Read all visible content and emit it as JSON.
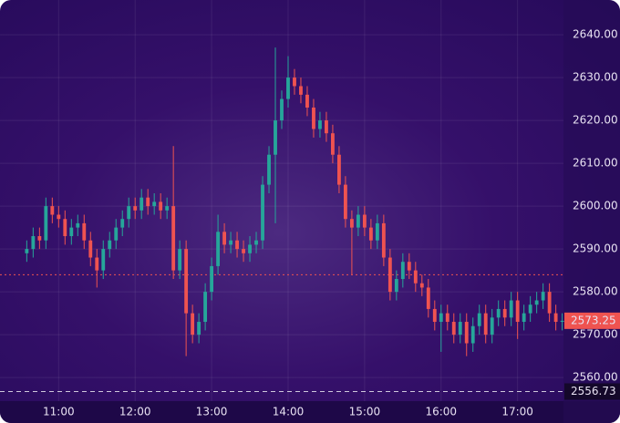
{
  "chart_data": {
    "type": "candlestick",
    "up_color": "#26a69a",
    "down_color": "#ef5350",
    "grid": true,
    "x": [
      635,
      640,
      645,
      650,
      655,
      660,
      665,
      670,
      675,
      680,
      685,
      690,
      695,
      700,
      705,
      710,
      715,
      720,
      725,
      730,
      735,
      740,
      745,
      750,
      755,
      760,
      765,
      770,
      775,
      780,
      785,
      790,
      795,
      800,
      805,
      810,
      815,
      820,
      825,
      830,
      835,
      840,
      845,
      850,
      855,
      860,
      865,
      870,
      875,
      880,
      885,
      890,
      895,
      900,
      905,
      910,
      915,
      920,
      925,
      930,
      935,
      940,
      945,
      950,
      955,
      960,
      965,
      970,
      975,
      980,
      985,
      990,
      995,
      1000,
      1005,
      1010,
      1015,
      1020,
      1025,
      1030,
      1035,
      1040,
      1045,
      1050,
      1055
    ],
    "open": [
      2589,
      2590,
      2593,
      2592,
      2600,
      2598,
      2597,
      2593,
      2595,
      2596,
      2592,
      2588,
      2585,
      2590,
      2592,
      2595,
      2597,
      2600,
      2599,
      2602,
      2600,
      2601,
      2599,
      2600,
      2585,
      2590,
      2575,
      2570,
      2573,
      2580,
      2586,
      2594,
      2591,
      2592,
      2590,
      2589,
      2591,
      2592,
      2605,
      2612,
      2620,
      2625,
      2630,
      2628,
      2626,
      2623,
      2618,
      2620,
      2617,
      2612,
      2605,
      2597,
      2595,
      2598,
      2595,
      2592,
      2596,
      2588,
      2580,
      2583,
      2587,
      2585,
      2582,
      2581,
      2576,
      2573,
      2575,
      2573,
      2570,
      2573,
      2568,
      2572,
      2575,
      2570,
      2574,
      2576,
      2574,
      2578,
      2573,
      2575,
      2577,
      2578,
      2580,
      2575,
      2573
    ],
    "high": [
      2592,
      2595,
      2595,
      2602,
      2602,
      2600,
      2599,
      2597,
      2598,
      2598,
      2594,
      2590,
      2592,
      2594,
      2597,
      2599,
      2602,
      2602,
      2604,
      2604,
      2603,
      2603,
      2602,
      2614,
      2592,
      2592,
      2577,
      2575,
      2582,
      2588,
      2598,
      2596,
      2594,
      2594,
      2592,
      2593,
      2594,
      2607,
      2614,
      2637,
      2627,
      2635,
      2632,
      2630,
      2628,
      2625,
      2622,
      2622,
      2619,
      2614,
      2607,
      2599,
      2600,
      2600,
      2597,
      2598,
      2598,
      2590,
      2585,
      2589,
      2589,
      2587,
      2584,
      2583,
      2578,
      2577,
      2577,
      2575,
      2575,
      2575,
      2574,
      2577,
      2577,
      2576,
      2578,
      2578,
      2580,
      2580,
      2577,
      2579,
      2580,
      2582,
      2582,
      2577,
      2575
    ],
    "low": [
      2587,
      2588,
      2590,
      2590,
      2596,
      2595,
      2591,
      2591,
      2593,
      2590,
      2586,
      2581,
      2583,
      2588,
      2590,
      2593,
      2595,
      2597,
      2597,
      2598,
      2598,
      2597,
      2597,
      2583,
      2583,
      2565,
      2568,
      2568,
      2571,
      2578,
      2584,
      2589,
      2589,
      2588,
      2587,
      2587,
      2589,
      2590,
      2603,
      2596,
      2618,
      2623,
      2626,
      2624,
      2621,
      2616,
      2616,
      2615,
      2610,
      2603,
      2595,
      2584,
      2593,
      2593,
      2590,
      2590,
      2586,
      2578,
      2578,
      2581,
      2583,
      2580,
      2579,
      2574,
      2571,
      2566,
      2571,
      2568,
      2568,
      2565,
      2566,
      2570,
      2568,
      2568,
      2572,
      2572,
      2572,
      2569,
      2571,
      2573,
      2575,
      2576,
      2573,
      2571,
      2571
    ],
    "close": [
      2590,
      2593,
      2592,
      2600,
      2598,
      2597,
      2593,
      2595,
      2596,
      2592,
      2588,
      2585,
      2590,
      2592,
      2595,
      2597,
      2600,
      2599,
      2602,
      2600,
      2601,
      2599,
      2600,
      2585,
      2590,
      2575,
      2570,
      2573,
      2580,
      2586,
      2594,
      2591,
      2592,
      2590,
      2589,
      2591,
      2592,
      2605,
      2612,
      2620,
      2625,
      2630,
      2628,
      2626,
      2623,
      2618,
      2620,
      2617,
      2612,
      2605,
      2597,
      2595,
      2598,
      2595,
      2592,
      2596,
      2588,
      2580,
      2583,
      2587,
      2585,
      2582,
      2581,
      2576,
      2573,
      2575,
      2573,
      2570,
      2573,
      2568,
      2572,
      2575,
      2570,
      2574,
      2576,
      2574,
      2578,
      2573,
      2575,
      2577,
      2578,
      2580,
      2575,
      2573,
      2573.25
    ],
    "xlim": [
      614,
      1056
    ],
    "xticks": [
      {
        "value": 660,
        "label": "11:00"
      },
      {
        "value": 720,
        "label": "12:00"
      },
      {
        "value": 780,
        "label": "13:00"
      },
      {
        "value": 840,
        "label": "14:00"
      },
      {
        "value": 900,
        "label": "15:00"
      },
      {
        "value": 960,
        "label": "16:00"
      },
      {
        "value": 1020,
        "label": "17:00"
      }
    ],
    "ylim": [
      2554.5,
      2648.1
    ],
    "yticks": [
      {
        "value": 2560,
        "label": "2560.00"
      },
      {
        "value": 2570,
        "label": "2570.00"
      },
      {
        "value": 2580,
        "label": "2580.00"
      },
      {
        "value": 2590,
        "label": "2590.00"
      },
      {
        "value": 2600,
        "label": "2600.00"
      },
      {
        "value": 2610,
        "label": "2610.00"
      },
      {
        "value": 2620,
        "label": "2620.00"
      },
      {
        "value": 2630,
        "label": "2630.00"
      },
      {
        "value": 2640,
        "label": "2640.00"
      }
    ],
    "reference_line": 2584,
    "marker_line": 2556.73
  }
}
